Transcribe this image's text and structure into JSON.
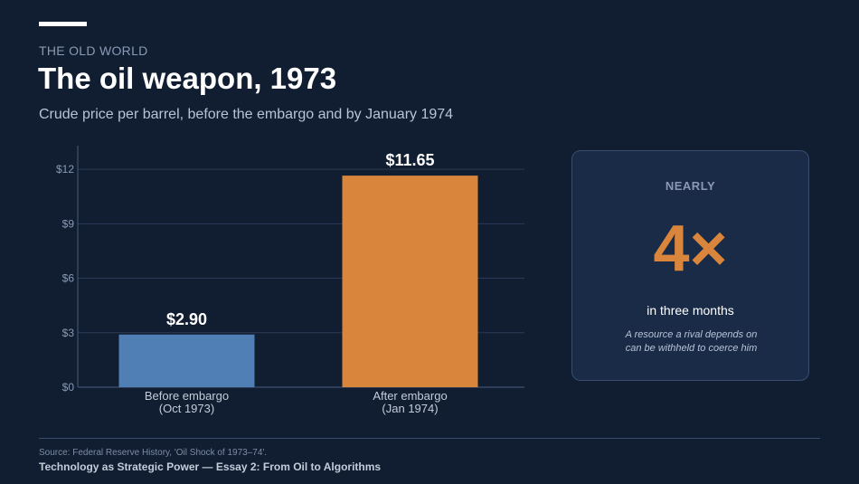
{
  "header": {
    "kicker": "THE OLD WORLD",
    "title": "The oil weapon, 1973",
    "subtitle": "Crude price per barrel, before the embargo and by January 1974"
  },
  "chart_data": {
    "type": "bar",
    "title": "",
    "xlabel": "",
    "ylabel": "",
    "categories": [
      "Before embargo (Oct 1973)",
      "After embargo (Jan 1974)"
    ],
    "category_lines": [
      [
        "Before embargo",
        "(Oct 1973)"
      ],
      [
        "After embargo",
        "(Jan 1974)"
      ]
    ],
    "values": [
      2.9,
      11.65
    ],
    "value_labels": [
      "$2.90",
      "$11.65"
    ],
    "bar_colors": [
      "#4f7fb5",
      "#d9853b"
    ],
    "ylim": [
      0,
      13.3
    ],
    "yticks": [
      0,
      3,
      6,
      9,
      12
    ],
    "ytick_labels": [
      "$0",
      "$3",
      "$6",
      "$9",
      "$12"
    ],
    "grid": true,
    "legend": "none"
  },
  "callout": {
    "kicker": "NEARLY",
    "big": "4×",
    "caption": "in three months",
    "note": "A resource a rival depends on can be withheld to coerce him"
  },
  "footer": {
    "source": "Source: Federal Reserve History, 'Oil Shock of 1973–74'.",
    "series": "Technology as Strategic Power  —  Essay 2: From Oil to Algorithms"
  },
  "colors": {
    "background": "#111d31",
    "accent_orange": "#d9853b",
    "accent_blue": "#4f7fb5",
    "card_background": "#1a2b47"
  }
}
